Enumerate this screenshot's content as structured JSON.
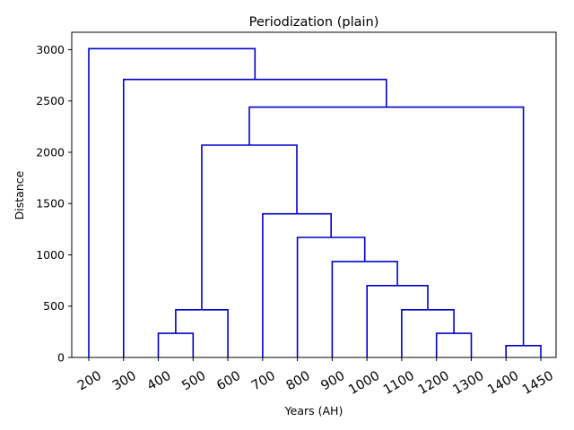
{
  "chart_data": {
    "type": "dendrogram",
    "title": "Periodization (plain)",
    "xlabel": "Years (AH)",
    "ylabel": "Distance",
    "ylim": [
      0,
      3170
    ],
    "yticks": [
      0,
      500,
      1000,
      1500,
      2000,
      2500,
      3000
    ],
    "leaves": [
      "200",
      "300",
      "400",
      "500",
      "600",
      "700",
      "800",
      "900",
      "1000",
      "1100",
      "1200",
      "1300",
      "1400",
      "1450"
    ],
    "merges": [
      {
        "left": "400",
        "right": "500",
        "height": 235
      },
      {
        "left": "1200",
        "right": "1300",
        "height": 235
      },
      {
        "left": "1400",
        "right": "1450",
        "height": 115
      },
      {
        "left": "400-500",
        "right": "600",
        "height": 465
      },
      {
        "left": "1100",
        "right": "1200-1300",
        "height": 465
      },
      {
        "left": "1000",
        "right": "1100-1300",
        "height": 700
      },
      {
        "left": "900",
        "right": "1000-1300",
        "height": 935
      },
      {
        "left": "800",
        "right": "900-1300",
        "height": 1170
      },
      {
        "left": "700",
        "right": "800-1300",
        "height": 1400
      },
      {
        "left": "400-600",
        "right": "700-1300",
        "height": 2070
      },
      {
        "left": "400-1300",
        "right": "1400-1450",
        "height": 2440
      },
      {
        "left": "300",
        "right": "400-1450",
        "height": 2710
      },
      {
        "left": "200",
        "right": "300-1450",
        "height": 3010
      }
    ],
    "line_color": "#0000cc",
    "grid": false,
    "legend": "none"
  }
}
